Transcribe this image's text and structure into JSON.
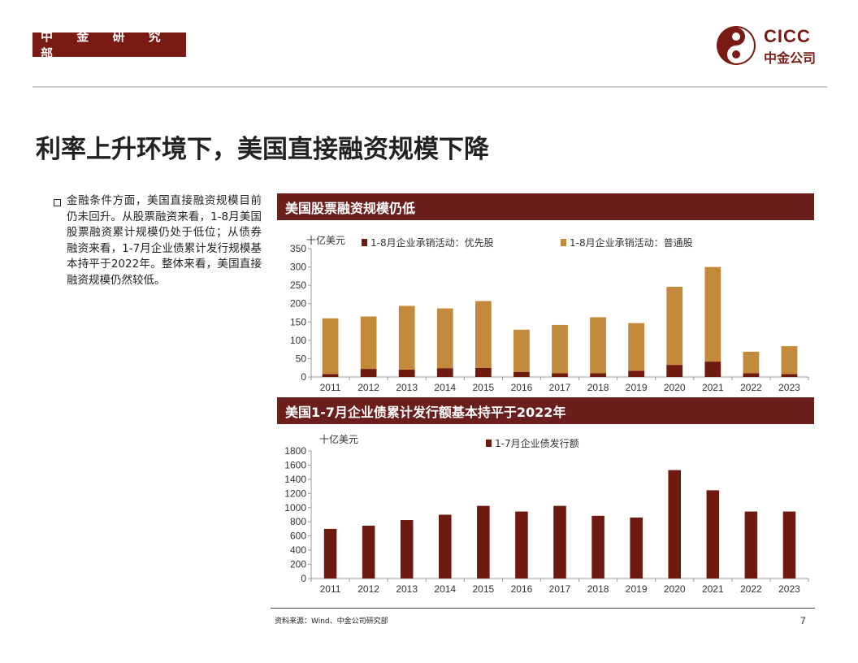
{
  "header": {
    "dept": "中 金 研 究 部"
  },
  "logo": {
    "en": "CICC",
    "cn": "中金公司",
    "color": "#7a1a14"
  },
  "title": "利率上升环境下，美国直接融资规模下降",
  "bullet": "金融条件方面，美国直接融资规模目前仍未回升。从股票融资来看，1-8月美国股票融资累计规模仍处于低位；从债券融资来看，1-7月企业债累计发行规模基本持平于2022年。整体来看，美国直接融资规模仍然较低。",
  "colors": {
    "dark_red": "#6e1a0f",
    "gold": "#c48a3c",
    "header_bg": "#6b1f1c"
  },
  "chart_data": [
    {
      "type": "bar",
      "stacked": true,
      "title": "美国股票融资规模仍低",
      "unit_label": "十亿美元",
      "categories": [
        "2011",
        "2012",
        "2013",
        "2014",
        "2015",
        "2016",
        "2017",
        "2018",
        "2019",
        "2020",
        "2021",
        "2022",
        "2023"
      ],
      "series": [
        {
          "name": "1-8月企业承销活动：优先股",
          "color": "#6e1a0f",
          "values": [
            8,
            22,
            20,
            24,
            25,
            14,
            10,
            10,
            17,
            33,
            42,
            10,
            8
          ]
        },
        {
          "name": "1-8月企业承销活动：普通股",
          "color": "#c48a3c",
          "values": [
            152,
            143,
            174,
            163,
            182,
            115,
            132,
            153,
            130,
            213,
            258,
            59,
            76
          ]
        }
      ],
      "ylim": [
        0,
        350
      ],
      "yticks": [
        0,
        50,
        100,
        150,
        200,
        250,
        300,
        350
      ],
      "legend": "top"
    },
    {
      "type": "bar",
      "title": "美国1-7月企业债累计发行额基本持平于2022年",
      "unit_label": "十亿美元",
      "categories": [
        "2011",
        "2012",
        "2013",
        "2014",
        "2015",
        "2016",
        "2017",
        "2018",
        "2019",
        "2020",
        "2021",
        "2022",
        "2023"
      ],
      "series": [
        {
          "name": "1-7月企业债发行额",
          "color": "#6e1a0f",
          "values": [
            700,
            745,
            825,
            900,
            1025,
            945,
            1025,
            885,
            860,
            1530,
            1245,
            945,
            945
          ]
        }
      ],
      "ylim": [
        0,
        1800
      ],
      "yticks": [
        0,
        200,
        400,
        600,
        800,
        1000,
        1200,
        1400,
        1600,
        1800
      ],
      "legend": "top"
    }
  ],
  "footer": {
    "source": "资料来源：Wind、中金公司研究部",
    "page": "7"
  }
}
